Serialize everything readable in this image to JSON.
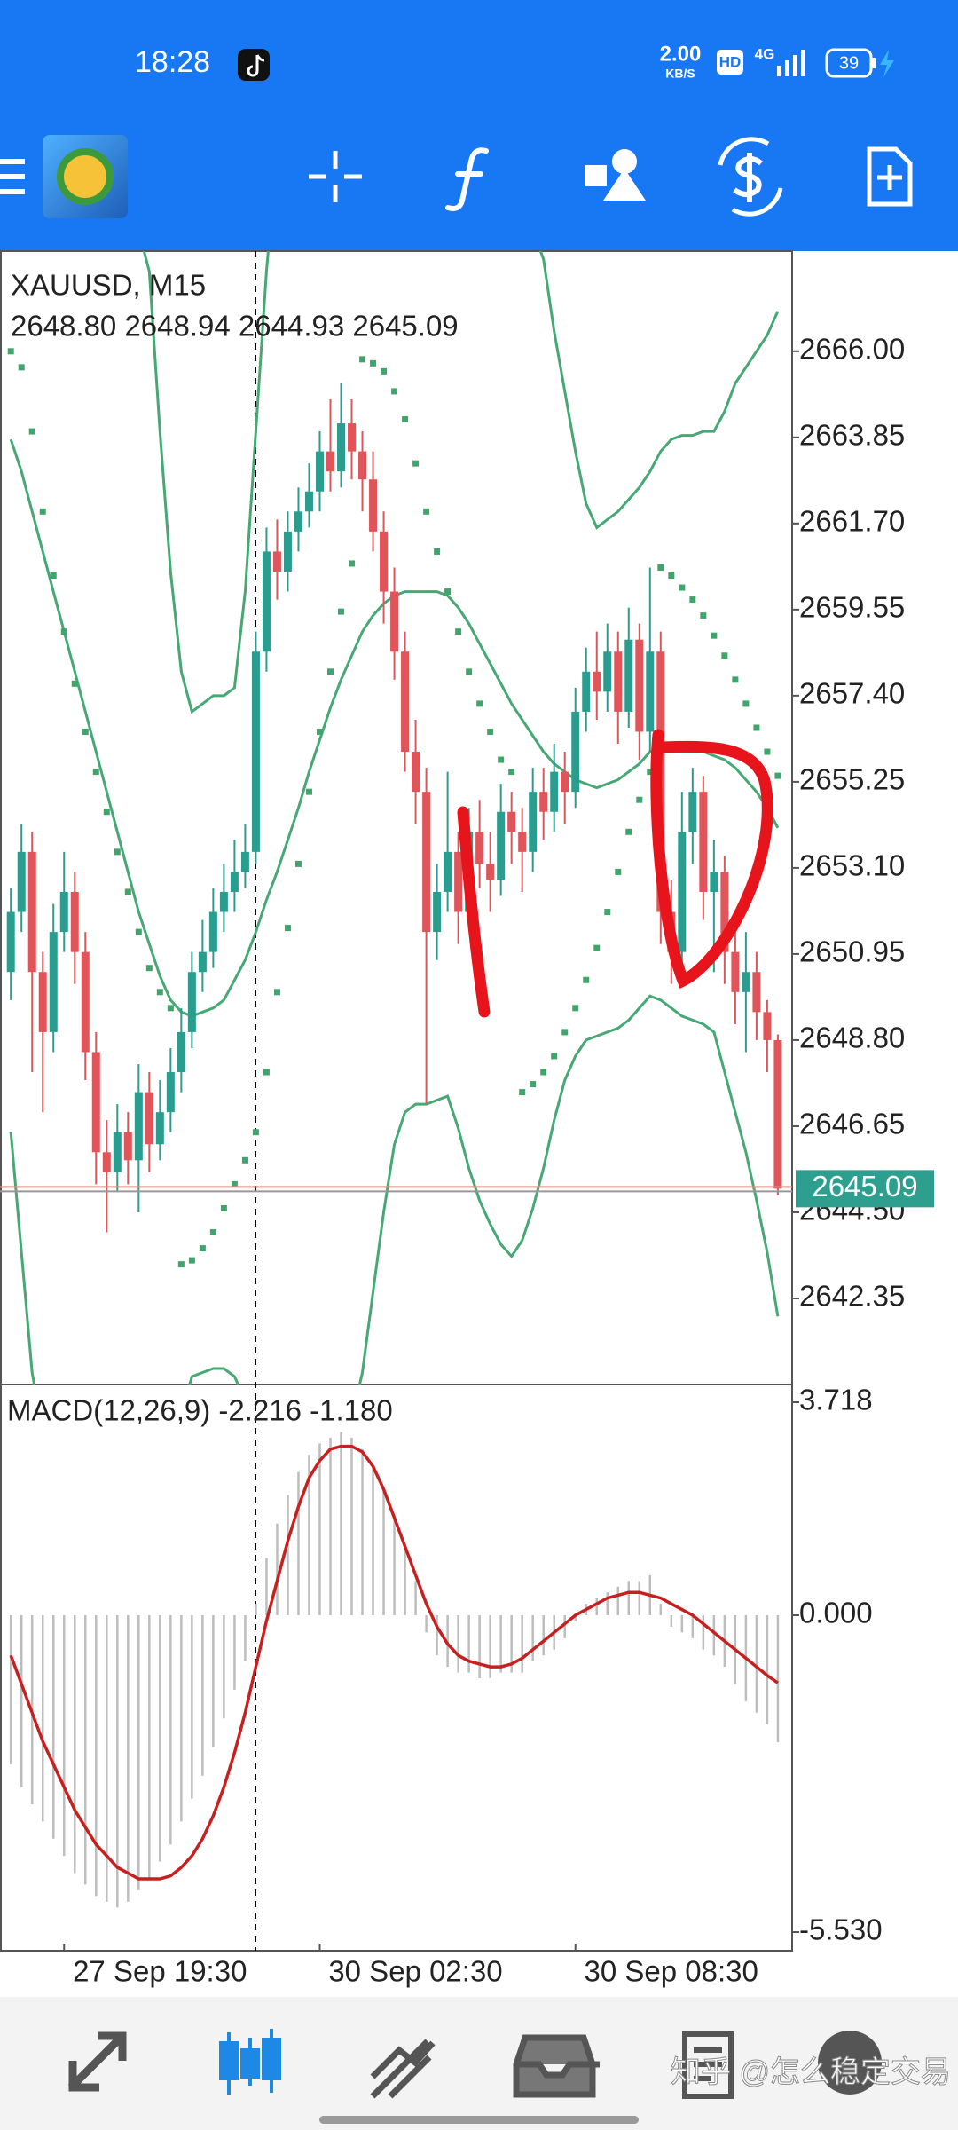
{
  "status_bar": {
    "time": "18:28",
    "speed": "2.00",
    "speed_unit": "KB/S",
    "hd": "HD",
    "network": "4G",
    "battery": "39"
  },
  "chart_data": [
    {
      "type": "candlestick",
      "title": "XAUUSD, M15",
      "subtitle": "2648.80 2648.94 2644.93 2645.09",
      "categories": [
        null,
        null,
        null,
        null,
        null,
        "27 Sep 19:30",
        null,
        null,
        null,
        null,
        null,
        null,
        null,
        null,
        null,
        null,
        null,
        null,
        null,
        null,
        null,
        null,
        null,
        null,
        null,
        null,
        null,
        null,
        null,
        "30 Sep 02:30",
        null,
        null,
        null,
        null,
        null,
        null,
        null,
        null,
        null,
        null,
        null,
        null,
        null,
        null,
        null,
        null,
        null,
        null,
        null,
        null,
        null,
        null,
        null,
        "30 Sep 08:30",
        null,
        null,
        null,
        null,
        null,
        null,
        null,
        null,
        null,
        null,
        null,
        null,
        null,
        null,
        null,
        null,
        null,
        null,
        null
      ],
      "up_color": "#2a9d8f",
      "down_color": "#e0555a",
      "series": [
        {
          "open": [
            2650.5,
            2652.0,
            2653.5,
            2650.5,
            2649.0,
            2651.5,
            2652.5,
            2651.0,
            2648.5,
            2646.0,
            2645.5,
            2646.5,
            2645.8,
            2647.5,
            2646.2,
            2647.0,
            2648.0,
            2649.0,
            2650.5,
            2651.0,
            2652.0,
            2652.5,
            2653.0,
            2653.5,
            2658.5,
            2661.0,
            2660.5,
            2661.5,
            2662.0,
            2662.5,
            2663.5,
            2663.0,
            2664.2,
            2663.5,
            2662.8,
            2661.5,
            2660.0,
            2658.5,
            2656.0,
            2655.0,
            2651.5,
            2652.5,
            2653.5,
            2652.0,
            2654.0,
            2653.2,
            2652.8,
            2654.5,
            2654.0,
            2653.5,
            2655.0,
            2654.5,
            2655.5,
            2655.0,
            2657.0,
            2658.0,
            2657.5,
            2658.5,
            2657.0,
            2658.8,
            2656.5,
            2658.5,
            2652.0,
            2651.0,
            2654.0,
            2655.0,
            2652.5,
            2653.0,
            2651.0,
            2650.0,
            2650.5,
            2649.5,
            2648.8
          ],
          "high": [
            2652.6,
            2654.2,
            2654.0,
            2651.0,
            2652.2,
            2653.5,
            2653.0,
            2651.5,
            2649.0,
            2646.8,
            2647.2,
            2647.0,
            2648.2,
            2648.0,
            2647.8,
            2648.6,
            2649.6,
            2651.0,
            2651.8,
            2652.6,
            2653.2,
            2653.8,
            2654.2,
            2659.0,
            2661.6,
            2661.8,
            2662.0,
            2662.6,
            2663.2,
            2664.0,
            2664.8,
            2665.2,
            2664.8,
            2664.0,
            2663.5,
            2662.0,
            2660.6,
            2659.0,
            2656.8,
            2655.6,
            2653.2,
            2655.5,
            2654.0,
            2654.6,
            2654.8,
            2654.0,
            2655.2,
            2655.0,
            2654.6,
            2655.6,
            2655.6,
            2656.2,
            2656.0,
            2657.6,
            2658.6,
            2659.0,
            2659.2,
            2659.0,
            2659.6,
            2659.2,
            2660.6,
            2659.0,
            2652.8,
            2655.0,
            2655.6,
            2655.4,
            2653.8,
            2653.4,
            2651.6,
            2651.5,
            2651.0,
            2649.8,
            2648.94
          ],
          "low": [
            2649.8,
            2651.5,
            2648.0,
            2647.0,
            2648.5,
            2651.0,
            2650.2,
            2647.8,
            2645.2,
            2644.0,
            2645.0,
            2645.2,
            2644.5,
            2645.5,
            2645.8,
            2646.5,
            2647.5,
            2648.6,
            2650.0,
            2650.6,
            2651.5,
            2652.0,
            2652.6,
            2653.2,
            2658.0,
            2659.8,
            2660.0,
            2661.0,
            2661.6,
            2662.0,
            2662.5,
            2662.6,
            2662.8,
            2662.0,
            2661.0,
            2659.2,
            2657.8,
            2655.5,
            2654.2,
            2647.2,
            2650.8,
            2652.0,
            2651.2,
            2651.6,
            2652.6,
            2652.0,
            2652.4,
            2653.2,
            2652.5,
            2653.0,
            2653.8,
            2654.0,
            2654.2,
            2654.6,
            2656.5,
            2656.8,
            2657.0,
            2656.2,
            2656.6,
            2655.8,
            2656.0,
            2651.2,
            2650.2,
            2650.6,
            2653.2,
            2651.8,
            2650.5,
            2650.2,
            2649.2,
            2648.5,
            2648.8,
            2648.0,
            2644.93
          ],
          "close": [
            2652.0,
            2653.5,
            2650.5,
            2649.0,
            2651.5,
            2652.5,
            2651.0,
            2648.5,
            2646.0,
            2645.5,
            2646.5,
            2645.8,
            2647.5,
            2646.2,
            2647.0,
            2648.0,
            2649.0,
            2650.5,
            2651.0,
            2652.0,
            2652.5,
            2653.0,
            2653.5,
            2658.5,
            2661.0,
            2660.5,
            2661.5,
            2662.0,
            2662.5,
            2663.5,
            2663.0,
            2664.2,
            2663.5,
            2662.8,
            2661.5,
            2660.0,
            2658.5,
            2656.0,
            2655.0,
            2651.5,
            2652.5,
            2653.5,
            2652.0,
            2654.0,
            2653.2,
            2652.8,
            2654.5,
            2654.0,
            2653.5,
            2655.0,
            2654.5,
            2655.5,
            2655.0,
            2657.0,
            2658.0,
            2657.5,
            2658.5,
            2657.0,
            2658.8,
            2656.5,
            2658.5,
            2652.0,
            2651.0,
            2654.0,
            2655.0,
            2652.5,
            2653.0,
            2651.0,
            2650.0,
            2650.5,
            2649.5,
            2648.8,
            2645.09
          ]
        }
      ],
      "bollinger": {
        "color": "#46a874",
        "upper": [
          2674,
          2675,
          2676,
          2676.5,
          2677,
          2677,
          2677,
          2676.5,
          2676,
          2675,
          2673.5,
          2671,
          2669,
          2668,
          2664,
          2660.5,
          2658,
          2657,
          2657.2,
          2657.4,
          2657.4,
          2657.6,
          2660,
          2664,
          2668,
          2671,
          2673,
          2674.5,
          2675.5,
          2676,
          2676.5,
          2677,
          2677,
          2677,
          2676.8,
          2676.5,
          2676,
          2675.5,
          2675,
          2674.5,
          2674,
          2673.5,
          2673,
          2672.5,
          2672,
          2671.5,
          2671,
          2670.3,
          2669.6,
          2669,
          2668.3,
          2666.5,
          2665,
          2663.5,
          2662.2,
          2661.6,
          2661.8,
          2662,
          2662.3,
          2662.6,
          2663,
          2663.5,
          2663.8,
          2663.9,
          2663.9,
          2664,
          2664,
          2664.5,
          2665.2,
          2665.6,
          2666,
          2666.4,
          2667
        ],
        "middle": [
          2663.8,
          2663,
          2662,
          2661,
          2660,
          2659,
          2658,
          2657,
          2656,
          2655,
          2654,
          2653,
          2652,
          2651.2,
          2650.4,
          2649.8,
          2649.5,
          2649.4,
          2649.5,
          2649.6,
          2649.8,
          2650.3,
          2650.8,
          2651.5,
          2652.3,
          2653,
          2653.8,
          2654.6,
          2655.5,
          2656.3,
          2657.1,
          2657.8,
          2658.4,
          2659,
          2659.4,
          2659.7,
          2659.9,
          2660,
          2660,
          2660,
          2660,
          2659.9,
          2659.6,
          2659.2,
          2658.7,
          2658.2,
          2657.7,
          2657.2,
          2656.8,
          2656.4,
          2656,
          2655.7,
          2655.5,
          2655.3,
          2655.2,
          2655.1,
          2655.2,
          2655.3,
          2655.5,
          2655.7,
          2656,
          2656.1,
          2656.1,
          2656,
          2656,
          2656,
          2655.9,
          2655.8,
          2655.6,
          2655.3,
          2655,
          2654.6,
          2654.1
        ],
        "lower": [
          2646.5,
          2643.5,
          2640.5,
          2639,
          2638.5,
          2638,
          2637.5,
          2637,
          2636.8,
          2636.6,
          2636.5,
          2636.6,
          2636.8,
          2637.2,
          2637.8,
          2638.6,
          2639.5,
          2640.4,
          2640.5,
          2640.6,
          2640.6,
          2640.4,
          2639.8,
          2639,
          2638,
          2637,
          2636,
          2635.5,
          2635.5,
          2636,
          2637,
          2638.2,
          2639.3,
          2640.5,
          2642.5,
          2644.5,
          2646.2,
          2647,
          2647.2,
          2647.2,
          2647.3,
          2647.4,
          2646.6,
          2645.6,
          2644.8,
          2644.2,
          2643.7,
          2643.4,
          2643.8,
          2644.6,
          2645.6,
          2646.8,
          2647.8,
          2648.4,
          2648.8,
          2648.9,
          2649,
          2649.1,
          2649.3,
          2649.6,
          2649.9,
          2649.8,
          2649.6,
          2649.4,
          2649.3,
          2649.2,
          2649,
          2648,
          2647,
          2646,
          2644.8,
          2643.5,
          2641.9
        ]
      },
      "sar": {
        "color": "#3fa66b",
        "values": [
          2666,
          2665.6,
          2664,
          2662,
          2660.4,
          2659,
          2657.7,
          2656.5,
          2655.5,
          2654.5,
          2653.5,
          2652.5,
          2651.5,
          2650.6,
          2650,
          2649.6,
          2643.2,
          2643.3,
          2643.6,
          2644,
          2644.6,
          2645.2,
          2645.8,
          2646.5,
          2648,
          2650,
          2651.6,
          2653.2,
          2655,
          2656.5,
          2658,
          2659.5,
          2660.7,
          2665.8,
          2665.7,
          2665.5,
          2665,
          2664.3,
          2663.2,
          2662,
          2661,
          2660,
          2659,
          2658,
          2657.2,
          2656.5,
          2655.8,
          2655.5,
          2647.5,
          2647.7,
          2648,
          2648.4,
          2649,
          2649.6,
          2650.3,
          2651.1,
          2652,
          2653,
          2654,
          2654.8,
          2655.5,
          2660.6,
          2660.4,
          2660.1,
          2659.8,
          2659.4,
          2658.9,
          2658.4,
          2657.8,
          2657.2,
          2656.6,
          2656,
          2655.4
        ]
      },
      "current_price_color": "#2e9f8f",
      "ylim": [
        2640.2,
        2668.5
      ],
      "yticks": [
        {
          "value": 2666,
          "label": "2666.00"
        },
        2663.85,
        {
          "value": 2661.7,
          "label": "2661.70"
        },
        2659.55,
        {
          "value": 2657.4,
          "label": "2657.40"
        },
        2655.25,
        {
          "value": 2653.1,
          "label": "2653.10"
        },
        2650.95,
        {
          "value": 2648.8,
          "label": "2648.80"
        },
        2646.65,
        {
          "value": 2644.5,
          "label": "2644.50"
        },
        2642.35
      ]
    },
    {
      "type": "macd",
      "title": "MACD(12,26,9) -2.216 -1.180",
      "histogram": {
        "color": "#bdbdbd",
        "values": [
          -2.6,
          -3.0,
          -3.3,
          -3.6,
          -3.9,
          -4.2,
          -4.5,
          -4.7,
          -4.9,
          -5.0,
          -5.1,
          -5.0,
          -4.8,
          -4.6,
          -4.3,
          -4.0,
          -3.6,
          -3.2,
          -2.8,
          -2.3,
          -1.8,
          -1.3,
          -0.8,
          0.2,
          1.0,
          1.6,
          2.1,
          2.5,
          2.8,
          3.0,
          3.1,
          3.2,
          3.1,
          2.9,
          2.6,
          2.2,
          1.7,
          1.2,
          0.6,
          -0.3,
          -0.7,
          -0.9,
          -1.0,
          -1.0,
          -1.1,
          -1.1,
          -1.0,
          -1.0,
          -1.0,
          -0.8,
          -0.7,
          -0.6,
          -0.4,
          -0.1,
          0.2,
          0.3,
          0.4,
          0.5,
          0.6,
          0.6,
          0.7,
          0.2,
          -0.2,
          -0.3,
          -0.4,
          -0.6,
          -0.7,
          -0.9,
          -1.2,
          -1.5,
          -1.7,
          -1.9,
          -2.216
        ]
      },
      "signal": {
        "color": "#c62020",
        "values": [
          -0.7,
          -1.2,
          -1.7,
          -2.2,
          -2.6,
          -3.0,
          -3.4,
          -3.7,
          -4.0,
          -4.2,
          -4.4,
          -4.5,
          -4.6,
          -4.6,
          -4.6,
          -4.55,
          -4.4,
          -4.2,
          -3.9,
          -3.5,
          -3.0,
          -2.4,
          -1.7,
          -0.9,
          -0.1,
          0.6,
          1.3,
          1.9,
          2.4,
          2.7,
          2.9,
          2.95,
          2.95,
          2.85,
          2.6,
          2.2,
          1.7,
          1.2,
          0.7,
          0.2,
          -0.2,
          -0.5,
          -0.7,
          -0.8,
          -0.85,
          -0.9,
          -0.9,
          -0.85,
          -0.75,
          -0.6,
          -0.45,
          -0.3,
          -0.15,
          0.0,
          0.1,
          0.2,
          0.3,
          0.35,
          0.4,
          0.4,
          0.35,
          0.3,
          0.2,
          0.1,
          0.0,
          -0.15,
          -0.3,
          -0.45,
          -0.6,
          -0.75,
          -0.9,
          -1.05,
          -1.18
        ]
      },
      "ylim": [
        -5.53,
        3.718
      ],
      "yticks": [
        3.718,
        {
          "value": 0,
          "label": "0.000"
        },
        {
          "value": -5.53,
          "label": "-5.530"
        }
      ]
    }
  ],
  "watermark": "知乎 @怎么稳定交易"
}
